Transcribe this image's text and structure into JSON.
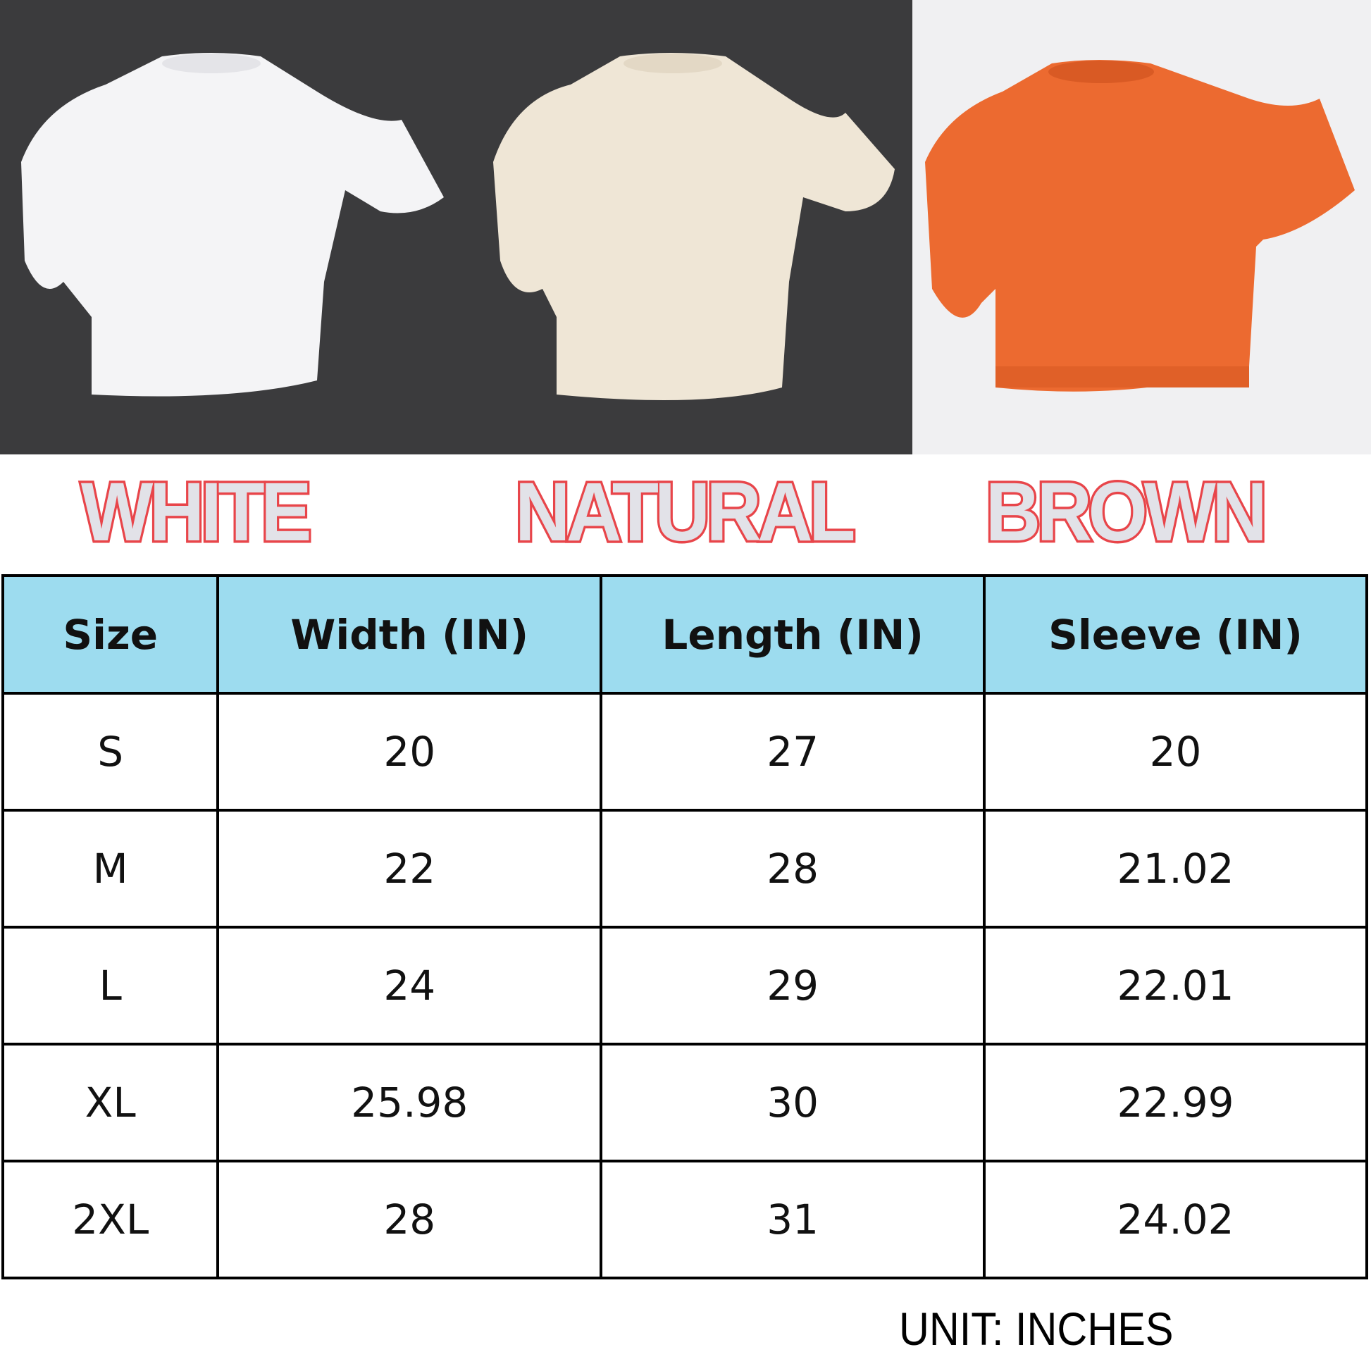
{
  "colors": {
    "items": [
      {
        "label": "WHITE",
        "fill": "#f4f4f6"
      },
      {
        "label": "NATURAL",
        "fill": "#efe6d6"
      },
      {
        "label": "BROWN",
        "fill": "#ec6a30"
      }
    ],
    "label_stroke": "#e8454a",
    "label_fill": "#e2e2e8"
  },
  "table": {
    "header_bg": "#9ddcef",
    "headers": [
      "Size",
      "Width (IN)",
      "Length (IN)",
      "Sleeve (IN)"
    ],
    "rows": [
      [
        "S",
        "20",
        "27",
        "20"
      ],
      [
        "M",
        "22",
        "28",
        "21.02"
      ],
      [
        "L",
        "24",
        "29",
        "22.01"
      ],
      [
        "XL",
        "25.98",
        "30",
        "22.99"
      ],
      [
        "2XL",
        "28",
        "31",
        "24.02"
      ]
    ]
  },
  "unit_note": "UNIT: INCHES"
}
